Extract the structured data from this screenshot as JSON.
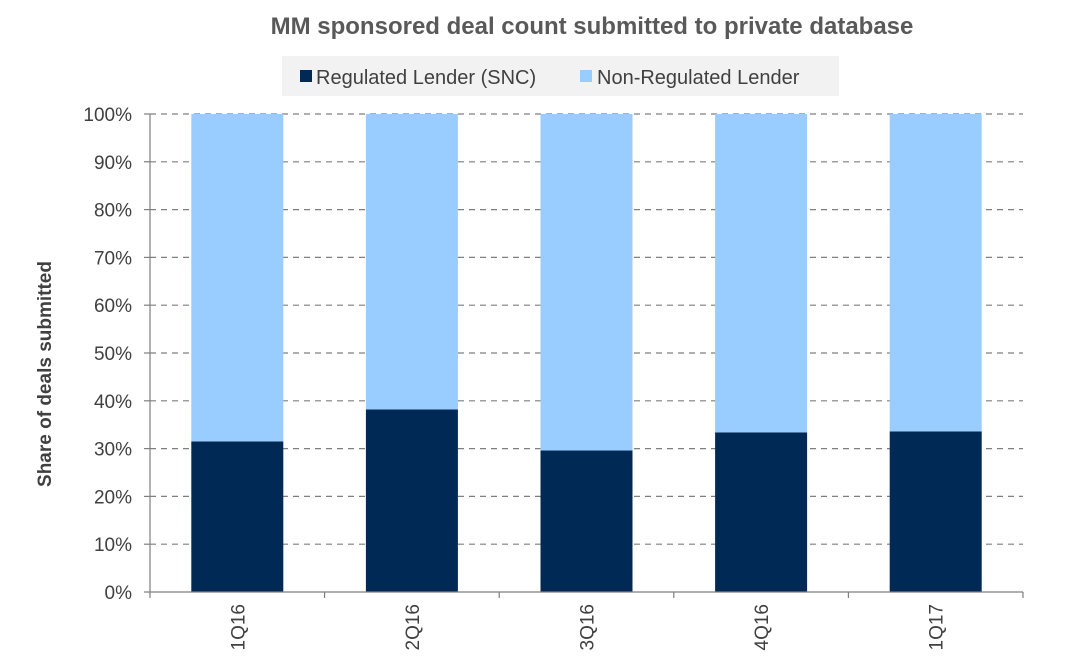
{
  "chart_data": {
    "type": "bar",
    "stacked": true,
    "title": "MM sponsored deal count submitted to private database",
    "xlabel": "",
    "ylabel": "Share of deals submitted",
    "categories": [
      "1Q16",
      "2Q16",
      "3Q16",
      "4Q16",
      "1Q17"
    ],
    "ylim": [
      0,
      100
    ],
    "yticks": [
      "0%",
      "10%",
      "20%",
      "30%",
      "40%",
      "50%",
      "60%",
      "70%",
      "80%",
      "90%",
      "100%"
    ],
    "series": [
      {
        "name": "Regulated Lender (SNC)",
        "color": "#002a55",
        "values": [
          31.5,
          38.2,
          29.6,
          33.4,
          33.6
        ]
      },
      {
        "name": "Non-Regulated Lender",
        "color": "#99ccff",
        "values": [
          68.5,
          61.8,
          70.4,
          66.6,
          66.4
        ]
      }
    ],
    "grid": true,
    "legend_position": "top-center"
  }
}
